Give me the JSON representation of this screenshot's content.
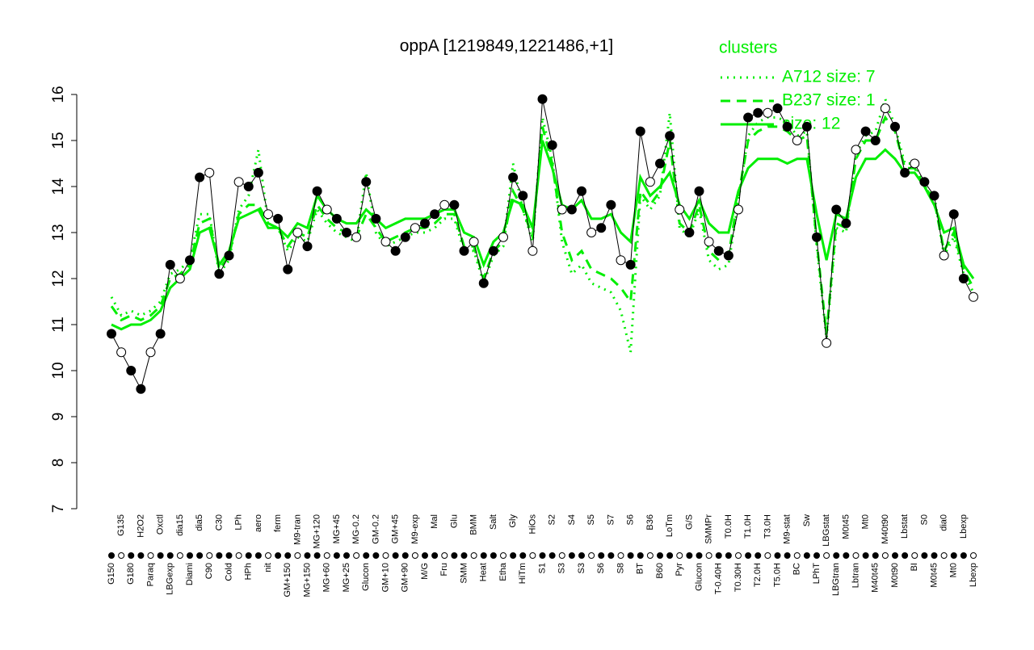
{
  "chart_data": {
    "type": "scatter-line",
    "title": "oppA [1219849,1221486,+1]",
    "legend_title": "clusters",
    "legend": "upper-right",
    "ylim": [
      7,
      16.2
    ],
    "yticks": [
      7,
      8,
      9,
      10,
      11,
      12,
      13,
      14,
      15,
      16
    ],
    "point_color": "#000000",
    "categories": [
      "G150",
      "G135",
      "G180",
      "H2O2",
      "Paraq",
      "Oxctl",
      "LBGexp",
      "dia15",
      "Diami",
      "dia5",
      "C90",
      "C30",
      "Cold",
      "LPh",
      "HPh",
      "aero",
      "nit",
      "ferm",
      "GM+150",
      "M9-tran",
      "MG+150",
      "MG+120",
      "MG+60",
      "MG+45",
      "MG+25",
      "MG-0.2",
      "Glucon",
      "GM-0.2",
      "GM+10",
      "GM+45",
      "GM+90",
      "M9-exp",
      "M/G",
      "Mal",
      "Fru",
      "Glu",
      "SMM",
      "BMM",
      "Heat",
      "Salt",
      "Etha",
      "Gly",
      "HiTm",
      "HiOs",
      "S1",
      "S2",
      "S3",
      "S4",
      "S3",
      "S5",
      "S6",
      "S7",
      "S8",
      "S6",
      "BT",
      "B36",
      "B60",
      "LoTm",
      "Pyr",
      "G/S",
      "Glucon",
      "SMMPr",
      "T-0.40H",
      "T0.0H",
      "T0.30H",
      "T1.0H",
      "T2.0H",
      "T3.0H",
      "T5.0H",
      "M9-stat",
      "BC",
      "Sw",
      "LPhT",
      "LBGstat",
      "LBGtran",
      "M0t45",
      "Lbtran",
      "Mt0",
      "M40t45",
      "M40t90",
      "M0t90",
      "Lbstat",
      "BI",
      "S0",
      "M0t45",
      "dia0",
      "Mt0",
      "Lbexp",
      "Lbexp"
    ],
    "values": [
      10.8,
      10.4,
      10.0,
      9.6,
      10.4,
      10.8,
      12.3,
      12.0,
      12.4,
      14.2,
      14.3,
      12.1,
      12.5,
      14.1,
      14.0,
      14.3,
      13.4,
      13.3,
      12.2,
      13.0,
      12.7,
      13.9,
      13.5,
      13.3,
      13.0,
      12.9,
      14.1,
      13.3,
      12.8,
      12.6,
      12.9,
      13.1,
      13.2,
      13.4,
      13.6,
      13.6,
      12.6,
      12.8,
      11.9,
      12.6,
      12.9,
      14.2,
      13.8,
      12.6,
      15.9,
      14.9,
      13.5,
      13.5,
      13.9,
      13.0,
      13.1,
      13.6,
      12.4,
      12.3,
      15.2,
      14.1,
      14.5,
      15.1,
      13.5,
      13.0,
      13.9,
      12.8,
      12.6,
      12.5,
      13.5,
      15.5,
      15.6,
      15.6,
      15.7,
      15.3,
      15.0,
      15.3,
      12.9,
      10.6,
      13.5,
      13.2,
      14.8,
      15.2,
      15.0,
      15.7,
      15.3,
      14.3,
      14.5,
      14.1,
      13.8,
      12.5,
      13.4,
      12.0,
      11.6
    ],
    "series": [
      {
        "name": "A712 size: 7",
        "color": "#00ee00",
        "style": "dotted",
        "values": [
          11.6,
          11.2,
          11.3,
          11.2,
          11.3,
          11.5,
          12.1,
          12.2,
          12.4,
          13.4,
          13.4,
          12.1,
          12.4,
          13.5,
          13.8,
          14.8,
          13.2,
          13.1,
          12.6,
          12.9,
          12.8,
          13.5,
          13.2,
          13.0,
          12.9,
          12.8,
          14.3,
          13.0,
          12.7,
          12.8,
          12.9,
          13.0,
          13.0,
          13.1,
          13.3,
          13.3,
          12.6,
          12.6,
          11.9,
          12.5,
          12.7,
          14.5,
          13.5,
          12.8,
          15.5,
          14.6,
          12.8,
          12.1,
          12.3,
          11.9,
          11.8,
          11.7,
          11.3,
          10.4,
          13.8,
          13.5,
          13.8,
          15.6,
          13.1,
          12.9,
          13.5,
          12.4,
          12.2,
          12.3,
          13.7,
          15.1,
          15.4,
          15.5,
          15.5,
          15.4,
          15.1,
          15.2,
          12.7,
          10.7,
          13.1,
          13.0,
          14.7,
          15.1,
          15.2,
          15.9,
          15.3,
          14.5,
          14.5,
          14.0,
          13.8,
          12.5,
          12.9,
          12.1,
          11.7
        ]
      },
      {
        "name": "B237 size: 1",
        "color": "#00ee00",
        "style": "dashed",
        "values": [
          11.4,
          11.1,
          11.2,
          11.1,
          11.2,
          11.4,
          12.0,
          12.1,
          12.3,
          13.2,
          13.3,
          12.2,
          12.5,
          13.4,
          13.6,
          13.6,
          13.2,
          13.1,
          12.7,
          13.0,
          12.9,
          13.6,
          13.3,
          13.1,
          13.0,
          12.9,
          13.4,
          13.1,
          12.8,
          12.9,
          13.0,
          13.1,
          13.1,
          13.2,
          13.4,
          13.4,
          12.7,
          12.7,
          12.0,
          12.6,
          12.8,
          13.9,
          13.5,
          12.9,
          15.3,
          14.5,
          13.0,
          12.4,
          12.6,
          12.2,
          12.1,
          12.0,
          11.8,
          11.5,
          13.9,
          13.6,
          13.9,
          15.0,
          13.2,
          13.0,
          13.6,
          12.6,
          12.4,
          12.5,
          13.8,
          15.0,
          15.2,
          15.3,
          15.3,
          15.2,
          15.0,
          15.1,
          12.8,
          10.8,
          13.2,
          13.1,
          14.6,
          15.0,
          15.0,
          15.5,
          15.2,
          14.4,
          14.4,
          14.0,
          13.7,
          12.6,
          13.0,
          12.2,
          11.8
        ]
      },
      {
        "name": "size: 12",
        "color": "#00ee00",
        "style": "solid",
        "values": [
          11.0,
          10.9,
          11.0,
          11.0,
          11.1,
          11.3,
          11.8,
          12.0,
          12.2,
          13.0,
          13.1,
          12.3,
          12.6,
          13.3,
          13.4,
          13.5,
          13.1,
          13.1,
          12.9,
          13.2,
          13.1,
          13.8,
          13.5,
          13.3,
          13.2,
          13.2,
          13.5,
          13.3,
          13.1,
          13.2,
          13.3,
          13.3,
          13.3,
          13.4,
          13.5,
          13.5,
          13.0,
          12.9,
          12.3,
          12.8,
          13.0,
          13.7,
          13.6,
          13.1,
          15.0,
          14.4,
          13.6,
          13.5,
          13.7,
          13.3,
          13.3,
          13.4,
          13.0,
          12.8,
          14.2,
          13.8,
          14.0,
          14.3,
          13.6,
          13.3,
          13.7,
          13.2,
          13.0,
          13.0,
          13.9,
          14.4,
          14.6,
          14.6,
          14.6,
          14.5,
          14.6,
          14.6,
          13.4,
          12.4,
          13.4,
          13.3,
          14.2,
          14.6,
          14.6,
          14.8,
          14.6,
          14.3,
          14.3,
          14.0,
          13.6,
          13.0,
          13.1,
          12.3,
          12.0
        ]
      }
    ]
  }
}
